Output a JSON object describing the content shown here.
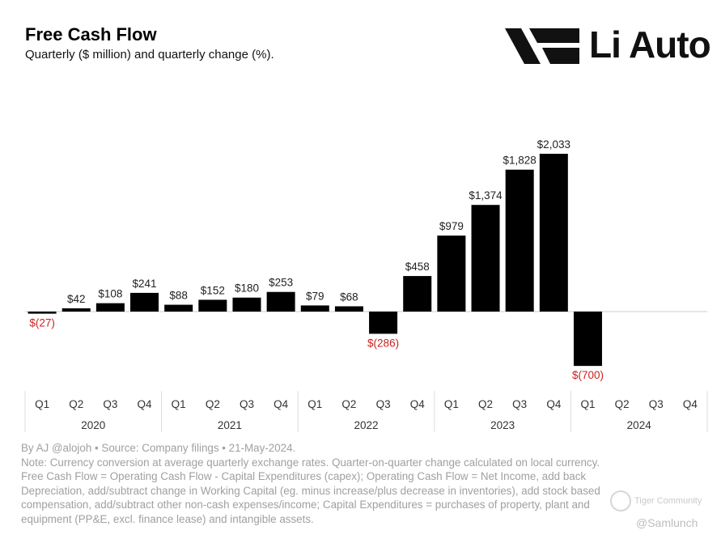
{
  "title": "Free Cash Flow",
  "subtitle": "Quarterly ($ million) and quarterly change (%).",
  "logo": {
    "text": "Li Auto"
  },
  "chart_data": {
    "type": "bar",
    "title": "Free Cash Flow",
    "subtitle": "Quarterly ($ million) and quarterly change (%).",
    "categories": [
      "Q1",
      "Q2",
      "Q3",
      "Q4",
      "Q1",
      "Q2",
      "Q3",
      "Q4",
      "Q1",
      "Q2",
      "Q3",
      "Q4",
      "Q1",
      "Q2",
      "Q3",
      "Q4",
      "Q1",
      "Q2",
      "Q3",
      "Q4"
    ],
    "years": [
      "2020",
      "2021",
      "2022",
      "2023",
      "2024"
    ],
    "values": [
      -27,
      42,
      108,
      241,
      88,
      152,
      180,
      253,
      79,
      68,
      -286,
      458,
      979,
      1374,
      1828,
      2033,
      -700,
      null,
      null,
      null
    ],
    "labels": [
      "$(27)",
      "$42",
      "$108",
      "$241",
      "$88",
      "$152",
      "$180",
      "$253",
      "$79",
      "$68",
      "$(286)",
      "$458",
      "$979",
      "$1,374",
      "$1,828",
      "$2,033",
      "$(700)",
      "",
      "",
      ""
    ],
    "ylim": [
      -700,
      2033
    ],
    "grid": false,
    "colors": {
      "bar": "#000000",
      "negative_label": "#cc1f1f",
      "positive_label": "#222222",
      "zero_line": "#cccccc",
      "separator": "#dddddd"
    }
  },
  "notes": [
    "By AJ @alojoh • Source: Company filings • 21-May-2024.",
    "Note: Currency conversion at average quarterly exchange rates. Quarter-on-quarter change calculated on local currency.",
    "Free Cash Flow = Operating Cash Flow - Capital Expenditures (capex); Operating Cash Flow = Net Income, add back",
    "Depreciation, add/subtract change in Working Capital (eg. minus increase/plus decrease in inventories), add stock based",
    "compensation, add/subtract other non-cash expenses/income; Capital Expenditures = purchases of property, plant and",
    "equipment (PP&E, excl. finance lease) and intangible assets."
  ],
  "watermarks": [
    "Tiger Community",
    "@Samlunch"
  ]
}
